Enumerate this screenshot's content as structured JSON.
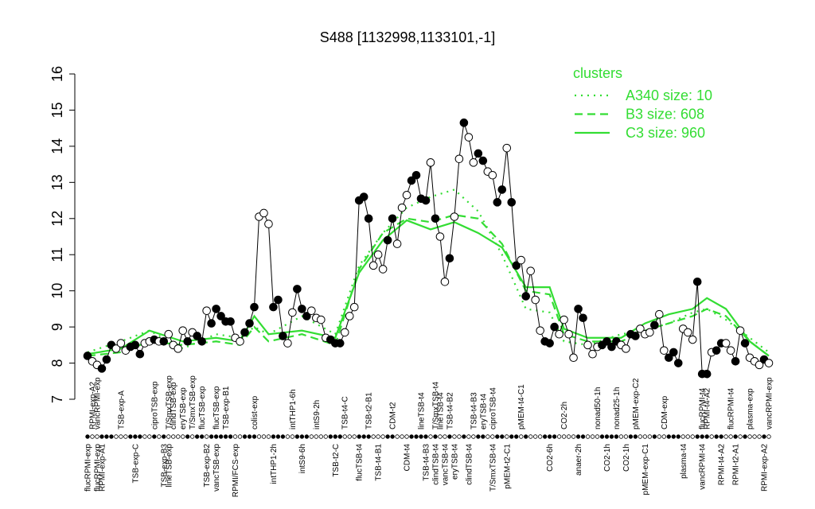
{
  "chart_data": {
    "type": "line",
    "title": "S488 [1132998,1133101,-1]",
    "xlim": [
      0,
      145
    ],
    "ylim": [
      7,
      16
    ],
    "yticks": [
      7,
      8,
      9,
      10,
      11,
      12,
      13,
      14,
      15,
      16
    ],
    "legend_title": "clusters",
    "legend_position": "upper right",
    "points": {
      "color": "#000000",
      "x": [
        1,
        2,
        3,
        4,
        5,
        6,
        7,
        8,
        9,
        10,
        11,
        12,
        13,
        14,
        15,
        16,
        17,
        18,
        19,
        20,
        21,
        22,
        23,
        24,
        25,
        26,
        27,
        28,
        29,
        30,
        31,
        32,
        33,
        34,
        35,
        36,
        37,
        38,
        39,
        40,
        41,
        42,
        43,
        44,
        45,
        46,
        47,
        48,
        49,
        50,
        51,
        52,
        53,
        54,
        55,
        56,
        57,
        58,
        59,
        60,
        61,
        62,
        63,
        64,
        65,
        66,
        67,
        68,
        69,
        70,
        71,
        72,
        73,
        74,
        75,
        76,
        77,
        78,
        79,
        80,
        81,
        82,
        83,
        84,
        85,
        86,
        87,
        88,
        89,
        90,
        91,
        92,
        93,
        94,
        95,
        96,
        97,
        98,
        99,
        100,
        101,
        102,
        103,
        104,
        105,
        106,
        107,
        108,
        109,
        110,
        111,
        112,
        113,
        114,
        115,
        116,
        117,
        118,
        119,
        120,
        121,
        122,
        123,
        124,
        125,
        126,
        127,
        128,
        129,
        130,
        131,
        132,
        133,
        134,
        135,
        136,
        137,
        138,
        139,
        140,
        141,
        142,
        143,
        144
      ],
      "values": [
        8.2,
        8.05,
        7.95,
        7.85,
        8.1,
        8.5,
        8.4,
        8.55,
        8.35,
        8.45,
        8.5,
        8.25,
        8.55,
        8.6,
        8.65,
        8.6,
        8.6,
        8.8,
        8.5,
        8.4,
        8.9,
        8.6,
        8.85,
        8.75,
        8.6,
        9.45,
        9.1,
        9.5,
        9.3,
        9.15,
        9.15,
        8.7,
        8.6,
        8.85,
        9.1,
        9.55,
        12.05,
        12.15,
        11.85,
        9.55,
        9.75,
        8.75,
        8.55,
        9.4,
        10.05,
        9.5,
        9.3,
        9.45,
        9.25,
        9.2,
        8.7,
        8.65,
        8.55,
        8.55,
        8.85,
        9.3,
        9.55,
        12.5,
        12.6,
        12,
        10.7,
        11,
        10.6,
        11.4,
        12,
        11.3,
        12.3,
        12.65,
        13.05,
        13.2,
        12.55,
        12.5,
        13.55,
        12,
        11.5,
        10.25,
        10.9,
        12.05,
        13.65,
        14.65,
        14.25,
        13.55,
        13.8,
        13.6,
        13.3,
        13.2,
        12.45,
        12.8,
        13.95,
        12.45,
        10.7,
        10.85,
        9.85,
        10.55,
        9.75,
        8.9,
        8.6,
        8.55,
        9,
        8.8,
        9.2,
        8.8,
        8.15,
        9.5,
        9.25,
        8.5,
        8.25,
        8.45,
        8.5,
        8.6,
        8.45,
        8.6,
        8.5,
        8.4,
        8.8,
        8.75,
        8.95,
        8.8,
        8.85,
        9.05,
        9.35,
        8.35,
        8.15,
        8.3,
        8,
        8.95,
        8.85,
        8.65,
        10.25,
        7.7,
        7.7,
        8.3,
        8.35,
        8.55,
        8.55,
        8.35,
        8.05,
        8.9,
        8.55,
        8.15,
        8.05,
        7.95,
        8.1,
        8
      ],
      "filled": [
        true,
        false,
        false,
        true,
        true,
        true,
        false,
        false,
        false,
        true,
        true,
        true,
        false,
        false,
        true,
        false,
        true,
        false,
        false,
        false,
        false,
        true,
        false,
        true,
        true,
        false,
        true,
        true,
        true,
        true,
        true,
        false,
        false,
        true,
        true,
        true,
        false,
        false,
        false,
        true,
        true,
        true,
        false,
        false,
        true,
        true,
        true,
        false,
        false,
        false,
        false,
        true,
        true,
        true,
        false,
        false,
        false,
        true,
        true,
        true,
        false,
        false,
        false,
        true,
        true,
        false,
        false,
        false,
        true,
        true,
        true,
        true,
        false,
        true,
        false,
        false,
        true,
        false,
        false,
        true,
        false,
        false,
        true,
        true,
        false,
        false,
        true,
        true,
        false,
        true,
        true,
        false,
        true,
        false,
        false,
        false,
        true,
        true,
        true,
        false,
        false,
        false,
        false,
        true,
        true,
        false,
        false,
        false,
        true,
        true,
        true,
        true,
        false,
        false,
        true,
        true,
        false,
        false,
        false,
        true,
        false,
        false,
        true,
        true,
        true,
        false,
        false,
        false,
        true,
        true,
        true,
        false,
        true,
        true,
        false,
        false,
        true,
        false,
        true,
        false,
        false,
        false,
        true,
        false
      ]
    },
    "series": [
      {
        "name": "A340 size: 10",
        "color": "#33dd33",
        "linestyle": "dotted",
        "x": [
          1,
          8,
          14,
          21,
          28,
          33,
          36,
          39,
          46,
          53,
          58,
          63,
          68,
          73,
          78,
          83,
          88,
          93,
          98,
          101,
          106,
          113,
          118,
          123,
          128,
          131,
          135,
          140,
          144
        ],
        "values": [
          8.3,
          8.6,
          8.9,
          8.4,
          8.8,
          8.7,
          9.0,
          8.8,
          9.3,
          8.8,
          10.7,
          11.6,
          12.3,
          12.6,
          12.8,
          12.2,
          11.0,
          9.5,
          9.4,
          8.6,
          8.5,
          8.8,
          8.9,
          9.1,
          9.4,
          9.5,
          9.2,
          8.7,
          8.3
        ]
      },
      {
        "name": "B3 size: 608",
        "color": "#33dd33",
        "linestyle": "dashed",
        "x": [
          1,
          8,
          14,
          21,
          28,
          33,
          36,
          39,
          46,
          53,
          58,
          63,
          68,
          73,
          78,
          83,
          88,
          93,
          98,
          101,
          106,
          113,
          118,
          123,
          128,
          131,
          135,
          140,
          144
        ],
        "values": [
          8.2,
          8.3,
          8.6,
          8.5,
          8.6,
          8.5,
          9.0,
          8.6,
          8.8,
          8.5,
          10.6,
          11.6,
          12.0,
          11.9,
          12.1,
          12.0,
          11.3,
          10.0,
          9.9,
          8.8,
          8.6,
          8.6,
          8.9,
          9.1,
          9.3,
          9.5,
          9.3,
          8.6,
          8.2
        ]
      },
      {
        "name": "C3 size: 960",
        "color": "#33dd33",
        "linestyle": "solid",
        "x": [
          1,
          8,
          14,
          21,
          28,
          33,
          36,
          39,
          46,
          53,
          58,
          63,
          68,
          73,
          78,
          83,
          88,
          93,
          98,
          101,
          106,
          113,
          118,
          123,
          128,
          131,
          135,
          140,
          144
        ],
        "values": [
          8.25,
          8.4,
          8.9,
          8.6,
          8.7,
          8.6,
          9.3,
          8.8,
          8.9,
          8.7,
          10.5,
          11.4,
          11.95,
          11.7,
          11.9,
          11.6,
          11.2,
          10.1,
          10.1,
          8.95,
          8.7,
          8.7,
          9.1,
          9.35,
          9.5,
          9.8,
          9.5,
          8.6,
          8.2
        ]
      }
    ],
    "xticks": [
      {
        "value": 2,
        "label": "RPMI-exp-A2"
      },
      {
        "value": 3,
        "label": "vancRPMI-exp"
      },
      {
        "value": 8,
        "label": "TSB-exp-A"
      },
      {
        "value": 15,
        "label": "ciproTSB-exp"
      },
      {
        "value": 18,
        "label": "T/SmxTSB-exp"
      },
      {
        "value": 19,
        "label": "clindTSB-exp"
      },
      {
        "value": 21,
        "label": "eryTSB-exp"
      },
      {
        "value": 23,
        "label": "T/SmxTSB-exp"
      },
      {
        "value": 25,
        "label": "flucTSB-exp"
      },
      {
        "value": 28,
        "label": "flucTSB-exp"
      },
      {
        "value": 30,
        "label": "TSB-exp-B1"
      },
      {
        "value": 36,
        "label": "colist-exp"
      },
      {
        "value": 44,
        "label": "intTHP1-6h"
      },
      {
        "value": 49,
        "label": "intS9-2h"
      },
      {
        "value": 55,
        "label": "TSB-t4-C"
      },
      {
        "value": 60,
        "label": "TSB-t2-B1"
      },
      {
        "value": 65,
        "label": "CDM-t2"
      },
      {
        "value": 71,
        "label": "lineTSB-t4"
      },
      {
        "value": 74,
        "label": "T/SmxTSB-t4"
      },
      {
        "value": 75,
        "label": "lineTSB-t4"
      },
      {
        "value": 77,
        "label": "TSB-t4-B2"
      },
      {
        "value": 82,
        "label": "TSB-t4-B3"
      },
      {
        "value": 84,
        "label": "eryTSB-t4"
      },
      {
        "value": 86,
        "label": "ciproTSB-t4"
      },
      {
        "value": 92,
        "label": "pMEM-t4-C1"
      },
      {
        "value": 101,
        "label": "CO2-2h"
      },
      {
        "value": 108,
        "label": "nonad50-1h"
      },
      {
        "value": 112,
        "label": "nonad25-1h"
      },
      {
        "value": 116,
        "label": "pMEM-exp-C2"
      },
      {
        "value": 122,
        "label": "CDM-exp"
      },
      {
        "value": 130,
        "label": "flucRPMI-t4"
      },
      {
        "value": 131,
        "label": "RPMI-t4-A2"
      },
      {
        "value": 136,
        "label": "flucRPMI-t4"
      },
      {
        "value": 140,
        "label": "plasma-exp"
      },
      {
        "value": 144,
        "label": "vancRPMI-exp"
      }
    ],
    "xticks_lower": [
      {
        "value": 1,
        "label": "flucRPMI-exp"
      },
      {
        "value": 3,
        "label": "flucRPMI-exp"
      },
      {
        "value": 4,
        "label": "RPMI-exp-A1"
      },
      {
        "value": 11,
        "label": "TSB-exp-C"
      },
      {
        "value": 17,
        "label": "TSB-exp-B3"
      },
      {
        "value": 18,
        "label": "lineTSB-exp"
      },
      {
        "value": 26,
        "label": "TSB-exp-B2"
      },
      {
        "value": 28,
        "label": "vancTSB-exp"
      },
      {
        "value": 32,
        "label": "RPMI/FCS-exp"
      },
      {
        "value": 40,
        "label": "intTHP1-2h"
      },
      {
        "value": 46,
        "label": "intS9-6h"
      },
      {
        "value": 53,
        "label": "TSB-t2-C"
      },
      {
        "value": 58,
        "label": "flucTSB-t4"
      },
      {
        "value": 62,
        "label": "TSB-t4-B1"
      },
      {
        "value": 68,
        "label": "CDM-t4"
      },
      {
        "value": 72,
        "label": "TSB-t4-B3"
      },
      {
        "value": 74,
        "label": "clindTSB-t4"
      },
      {
        "value": 76,
        "label": "vancTSB-t4"
      },
      {
        "value": 78,
        "label": "eryTSB-t4"
      },
      {
        "value": 81,
        "label": "clindTSB-t4"
      },
      {
        "value": 86,
        "label": "T/SmxTSB-t4"
      },
      {
        "value": 89,
        "label": "pMEM-t2-C1"
      },
      {
        "value": 98,
        "label": "CO2-6h"
      },
      {
        "value": 104,
        "label": "anaer-2h"
      },
      {
        "value": 110,
        "label": "CO2-1h"
      },
      {
        "value": 114,
        "label": "CO2-1h"
      },
      {
        "value": 118,
        "label": "pMEM-exp-C1"
      },
      {
        "value": 126,
        "label": "plasma-t4"
      },
      {
        "value": 130,
        "label": "vancRPMI-t4"
      },
      {
        "value": 134,
        "label": "RPMI-t4-A2"
      },
      {
        "value": 137,
        "label": "RPMI-t2-A1"
      },
      {
        "value": 143,
        "label": "RPMI-exp-A2"
      }
    ]
  }
}
